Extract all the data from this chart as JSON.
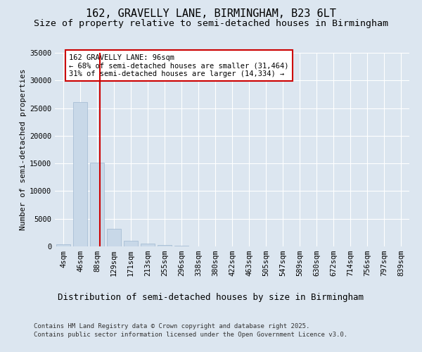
{
  "title1": "162, GRAVELLY LANE, BIRMINGHAM, B23 6LT",
  "title2": "Size of property relative to semi-detached houses in Birmingham",
  "xlabel": "Distribution of semi-detached houses by size in Birmingham",
  "ylabel": "Number of semi-detached properties",
  "categories": [
    "4sqm",
    "46sqm",
    "88sqm",
    "129sqm",
    "171sqm",
    "213sqm",
    "255sqm",
    "296sqm",
    "338sqm",
    "380sqm",
    "422sqm",
    "463sqm",
    "505sqm",
    "547sqm",
    "589sqm",
    "630sqm",
    "672sqm",
    "714sqm",
    "756sqm",
    "797sqm",
    "839sqm"
  ],
  "values": [
    400,
    26100,
    15100,
    3200,
    1000,
    480,
    280,
    80,
    30,
    10,
    5,
    2,
    1,
    1,
    0,
    0,
    0,
    0,
    0,
    0,
    0
  ],
  "bar_color": "#c8d8e8",
  "bar_edge_color": "#a0b8d0",
  "vline_x_index": 2.18,
  "vline_color": "#cc0000",
  "annotation_box_text": "162 GRAVELLY LANE: 96sqm\n← 68% of semi-detached houses are smaller (31,464)\n31% of semi-detached houses are larger (14,334) →",
  "annotation_box_color": "#cc0000",
  "annotation_box_bg": "#ffffff",
  "ylim": [
    0,
    35000
  ],
  "yticks": [
    0,
    5000,
    10000,
    15000,
    20000,
    25000,
    30000,
    35000
  ],
  "ytick_labels": [
    "0",
    "5000",
    "10000",
    "15000",
    "20000",
    "25000",
    "30000",
    "35000"
  ],
  "bg_color": "#dce6f0",
  "plot_bg_color": "#dce6f0",
  "footer1": "Contains HM Land Registry data © Crown copyright and database right 2025.",
  "footer2": "Contains public sector information licensed under the Open Government Licence v3.0.",
  "title1_fontsize": 11,
  "title2_fontsize": 9.5,
  "xlabel_fontsize": 9,
  "ylabel_fontsize": 8,
  "tick_fontsize": 7.5,
  "annotation_fontsize": 7.5,
  "footer_fontsize": 6.5
}
